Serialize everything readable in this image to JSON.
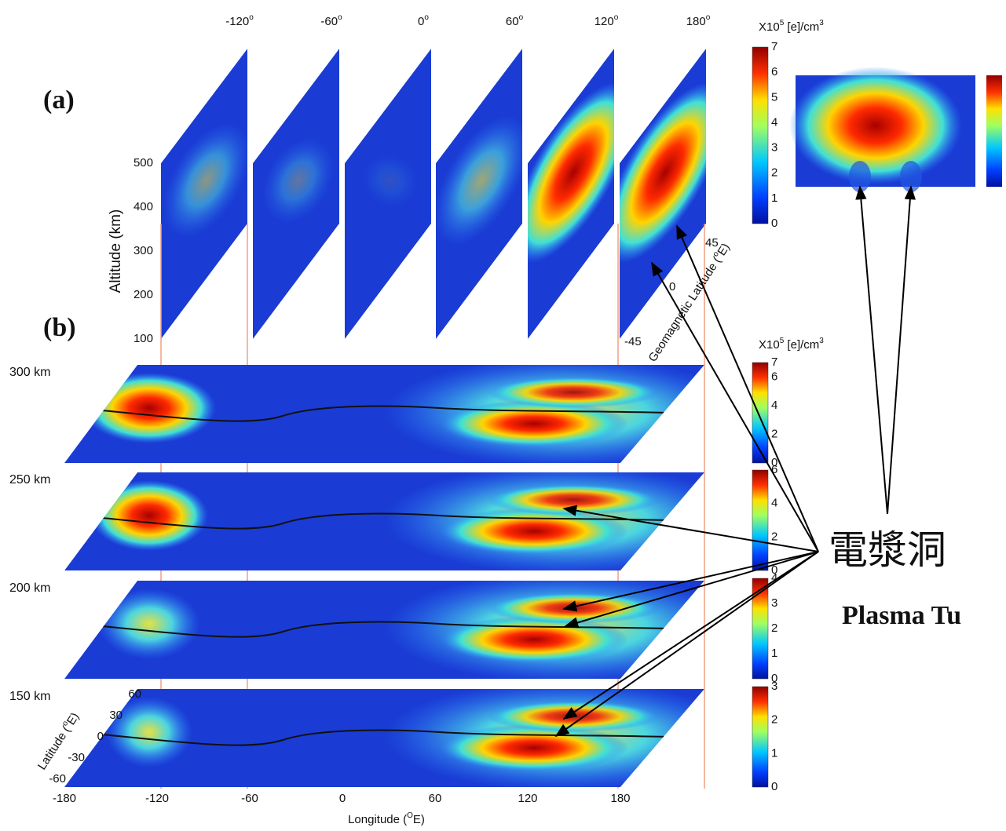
{
  "panel_a": {
    "label": "(a)",
    "longitudes": [
      {
        "value": "-120",
        "sup": "o"
      },
      {
        "value": "-60",
        "sup": "o"
      },
      {
        "value": "0",
        "sup": "o"
      },
      {
        "value": "60",
        "sup": "o"
      },
      {
        "value": "120",
        "sup": "o"
      },
      {
        "value": "180",
        "sup": "o"
      }
    ],
    "altitude_axis": {
      "title": "Altitude (km)",
      "ticks": [
        "500",
        "400",
        "300",
        "200",
        "100"
      ]
    },
    "geomagnetic_latitude": {
      "title": {
        "text": "Geomagnetic Latitude (",
        "sup": "o",
        "end": "E)"
      },
      "ticks": [
        "45",
        "0",
        "-45"
      ]
    },
    "colorbar": {
      "unit": {
        "text": "X10",
        "sup": "5",
        "mid": " [e]/cm",
        "sup2": "3"
      },
      "ticks": [
        "7",
        "6",
        "5",
        "4",
        "3",
        "2",
        "1",
        "0"
      ]
    }
  },
  "panel_b": {
    "label": "(b)",
    "colorbar_unit": {
      "text": "X10",
      "sup": "5",
      "mid": " [e]/cm",
      "sup2": "3"
    },
    "layers": [
      {
        "altitude": "300 km",
        "colorbar_ticks": [
          "7",
          "6",
          "4",
          "2",
          "0"
        ]
      },
      {
        "altitude": "250 km",
        "colorbar_ticks": [
          "6",
          "4",
          "2",
          "0"
        ]
      },
      {
        "altitude": "200 km",
        "colorbar_ticks": [
          "4",
          "3",
          "2",
          "1",
          "0"
        ]
      },
      {
        "altitude": "150 km",
        "colorbar_ticks": [
          "3",
          "2",
          "1",
          "0"
        ]
      }
    ],
    "latitude_axis": {
      "title": {
        "text": "Latitude (",
        "sup": "o",
        "end": "E)"
      },
      "ticks": [
        "60",
        "30",
        "0",
        "-30",
        "-60"
      ]
    },
    "longitude_axis": {
      "title": {
        "text": "Longitude (",
        "sup": "O",
        "end": "E)"
      },
      "ticks": [
        "-180",
        "-120",
        "-60",
        "0",
        "60",
        "120",
        "180"
      ]
    }
  },
  "annotation": {
    "chinese": "電漿洞",
    "english": "Plasma Tu"
  }
}
